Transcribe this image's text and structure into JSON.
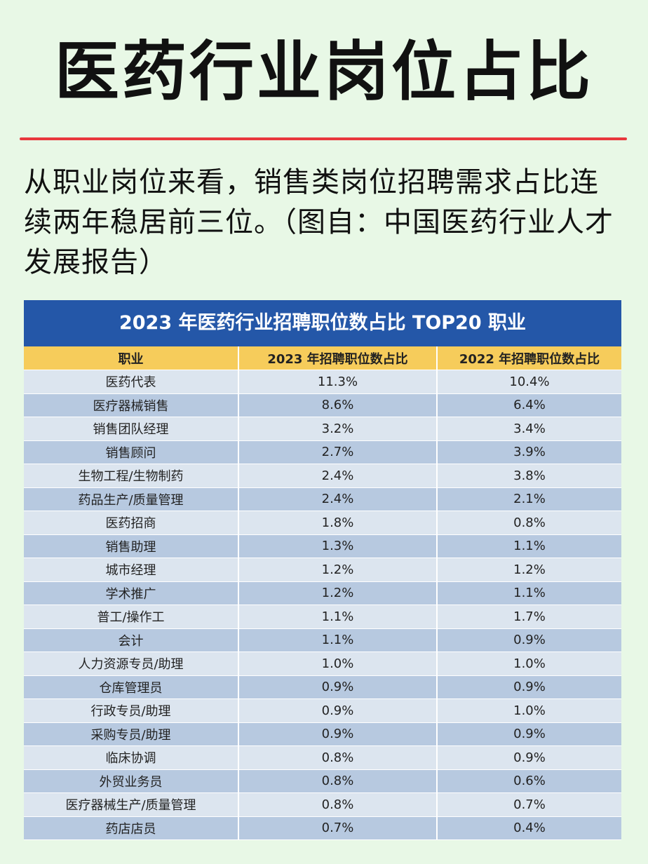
{
  "page": {
    "title": "医药行业岗位占比",
    "intro": "从职业岗位来看，销售类岗位招聘需求占比连续两年稳居前三位。（图自：中国医药行业人才发展报告）",
    "colors": {
      "background": "#e8f8e6",
      "rule": "#e8383d",
      "table_title_bg": "#2457a8",
      "header_bg": "#f6cc5b",
      "row_light": "#dce5ef",
      "row_dark": "#b7c9e0"
    }
  },
  "table": {
    "title": "2023 年医药行业招聘职位数占比 TOP20 职业",
    "headers": [
      "职业",
      "2023 年招聘职位数占比",
      "2022 年招聘职位数占比"
    ],
    "rows": [
      [
        "医药代表",
        "11.3%",
        "10.4%"
      ],
      [
        "医疗器械销售",
        "8.6%",
        "6.4%"
      ],
      [
        "销售团队经理",
        "3.2%",
        "3.4%"
      ],
      [
        "销售顾问",
        "2.7%",
        "3.9%"
      ],
      [
        "生物工程/生物制药",
        "2.4%",
        "3.8%"
      ],
      [
        "药品生产/质量管理",
        "2.4%",
        "2.1%"
      ],
      [
        "医药招商",
        "1.8%",
        "0.8%"
      ],
      [
        "销售助理",
        "1.3%",
        "1.1%"
      ],
      [
        "城市经理",
        "1.2%",
        "1.2%"
      ],
      [
        "学术推广",
        "1.2%",
        "1.1%"
      ],
      [
        "普工/操作工",
        "1.1%",
        "1.7%"
      ],
      [
        "会计",
        "1.1%",
        "0.9%"
      ],
      [
        "人力资源专员/助理",
        "1.0%",
        "1.0%"
      ],
      [
        "仓库管理员",
        "0.9%",
        "0.9%"
      ],
      [
        "行政专员/助理",
        "0.9%",
        "1.0%"
      ],
      [
        "采购专员/助理",
        "0.9%",
        "0.9%"
      ],
      [
        "临床协调",
        "0.8%",
        "0.9%"
      ],
      [
        "外贸业务员",
        "0.8%",
        "0.6%"
      ],
      [
        "医疗器械生产/质量管理",
        "0.8%",
        "0.7%"
      ],
      [
        "药店店员",
        "0.7%",
        "0.4%"
      ]
    ]
  }
}
